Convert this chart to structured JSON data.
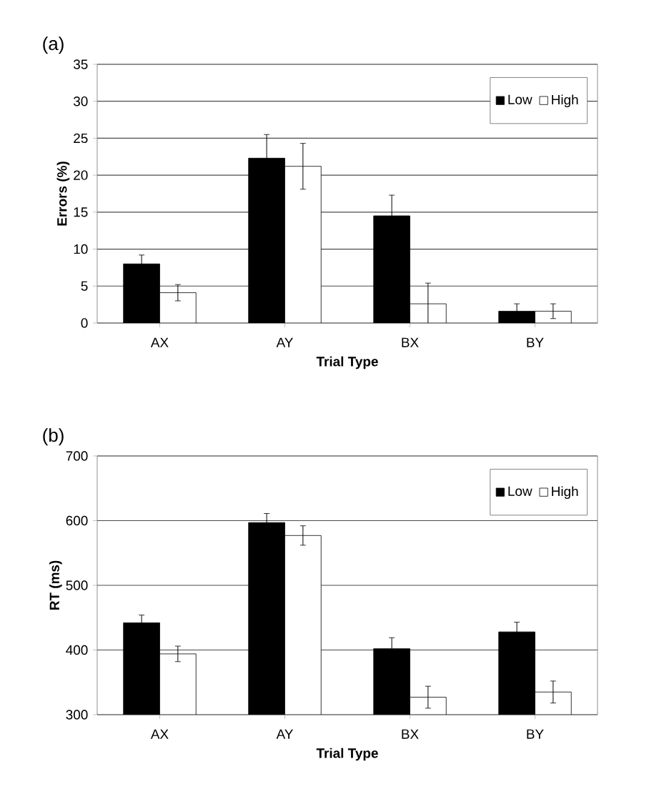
{
  "chart_data": [
    {
      "type": "bar",
      "title": "(a)",
      "xlabel": "Trial Type",
      "ylabel": "Errors (%)",
      "categories": [
        "AX",
        "AY",
        "BX",
        "BY"
      ],
      "series": [
        {
          "name": "Low",
          "color": "#000000",
          "values": [
            8.0,
            22.3,
            14.5,
            1.6
          ],
          "errors": [
            1.2,
            3.2,
            2.8,
            1.0
          ]
        },
        {
          "name": "High",
          "color": "#ffffff",
          "values": [
            4.1,
            21.2,
            2.6,
            1.6
          ],
          "errors": [
            1.1,
            3.1,
            2.8,
            1.0
          ]
        }
      ],
      "ylim": [
        0,
        35
      ],
      "yticks": [
        0,
        5,
        10,
        15,
        20,
        25,
        30,
        35
      ],
      "grid": "y",
      "legend": "top right"
    },
    {
      "type": "bar",
      "title": "(b)",
      "xlabel": "Trial Type",
      "ylabel": "RT (ms)",
      "categories": [
        "AX",
        "AY",
        "BX",
        "BY"
      ],
      "series": [
        {
          "name": "Low",
          "color": "#000000",
          "values": [
            442,
            597,
            402,
            428
          ],
          "errors": [
            12,
            14,
            17,
            15
          ]
        },
        {
          "name": "High",
          "color": "#ffffff",
          "values": [
            394,
            577,
            327,
            335
          ],
          "errors": [
            12,
            15,
            17,
            17
          ]
        }
      ],
      "ylim": [
        300,
        700
      ],
      "yticks": [
        300,
        400,
        500,
        600,
        700
      ],
      "grid": "y",
      "legend": "top right"
    }
  ]
}
